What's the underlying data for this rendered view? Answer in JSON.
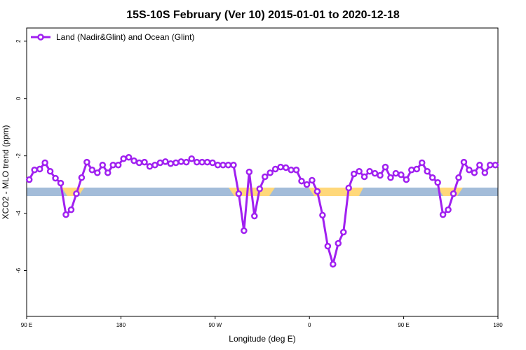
{
  "chart_data": {
    "type": "line",
    "title": "15S-10S February (Ver 10)   2015-01-01 to 2020-12-18",
    "x_label": "Longitude (deg E)",
    "y_label": "XCO2 - MLO trend (ppm)",
    "xlim": [
      90,
      540
    ],
    "ylim": [
      -7.6,
      2.46
    ],
    "xticks": [
      {
        "value": 90,
        "label": "90 E"
      },
      180,
      {
        "value": 270,
        "label": "90 W"
      },
      {
        "value": 360,
        "label": "0"
      },
      {
        "value": 450,
        "label": "90 E"
      },
      {
        "value": 540,
        "label": "180"
      }
    ],
    "yticks": [
      2,
      0,
      -2,
      -4,
      -6
    ],
    "legend": "top-left",
    "series": [
      {
        "name": "Land (Nadir&Glint) and Ocean (Glint)",
        "color": "#a020f0",
        "x": [
          92.5,
          97.5,
          102.5,
          107.5,
          112.5,
          117.5,
          122.5,
          127.5,
          132.5,
          137.5,
          142.5,
          147.5,
          152.5,
          157.5,
          162.5,
          167.5,
          172.5,
          177.5,
          182.5,
          187.5,
          192.5,
          197.5,
          202.5,
          207.5,
          212.5,
          217.5,
          222.5,
          227.5,
          232.5,
          237.5,
          242.5,
          247.5,
          252.5,
          257.5,
          262.5,
          267.5,
          272.5,
          277.5,
          282.5,
          287.5,
          292.5,
          297.5,
          302.5,
          307.5,
          312.5,
          317.5,
          322.5,
          327.5,
          332.5,
          337.5,
          342.5,
          347.5,
          352.5,
          357.5,
          362.5,
          367.5,
          372.5,
          377.5,
          382.5,
          387.5,
          392.5,
          397.5,
          402.5,
          407.5,
          412.5,
          417.5,
          422.5,
          427.5,
          432.5,
          437.5,
          442.5,
          447.5,
          452.5,
          457.5,
          462.5,
          467.5,
          472.5,
          477.5,
          482.5,
          487.5,
          492.5,
          497.5,
          502.5,
          507.5,
          512.5,
          517.5,
          522.5,
          527.5,
          532.5,
          537.5
        ],
        "values": [
          -2.83,
          -2.49,
          -2.46,
          -2.24,
          -2.54,
          -2.78,
          -2.95,
          -4.05,
          -3.88,
          -3.32,
          -2.76,
          -2.22,
          -2.49,
          -2.59,
          -2.32,
          -2.59,
          -2.32,
          -2.32,
          -2.1,
          -2.05,
          -2.17,
          -2.24,
          -2.22,
          -2.37,
          -2.32,
          -2.24,
          -2.2,
          -2.27,
          -2.24,
          -2.2,
          -2.22,
          -2.1,
          -2.22,
          -2.22,
          -2.22,
          -2.24,
          -2.32,
          -2.32,
          -2.32,
          -2.32,
          -3.32,
          -4.61,
          -2.56,
          -4.1,
          -3.15,
          -2.73,
          -2.59,
          -2.46,
          -2.39,
          -2.41,
          -2.49,
          -2.49,
          -2.88,
          -3.0,
          -2.85,
          -3.24,
          -4.07,
          -5.15,
          -5.78,
          -5.05,
          -4.66,
          -3.12,
          -2.63,
          -2.54,
          -2.73,
          -2.54,
          -2.61,
          -2.68,
          -2.39,
          -2.76,
          -2.61,
          -2.66,
          -2.83,
          -2.49,
          -2.46,
          -2.24,
          -2.54,
          -2.76,
          -2.93,
          -4.05,
          -3.88,
          -3.32,
          -2.76,
          -2.22,
          -2.49,
          -2.59,
          -2.32,
          -2.59,
          -2.32,
          -2.32
        ]
      }
    ]
  }
}
